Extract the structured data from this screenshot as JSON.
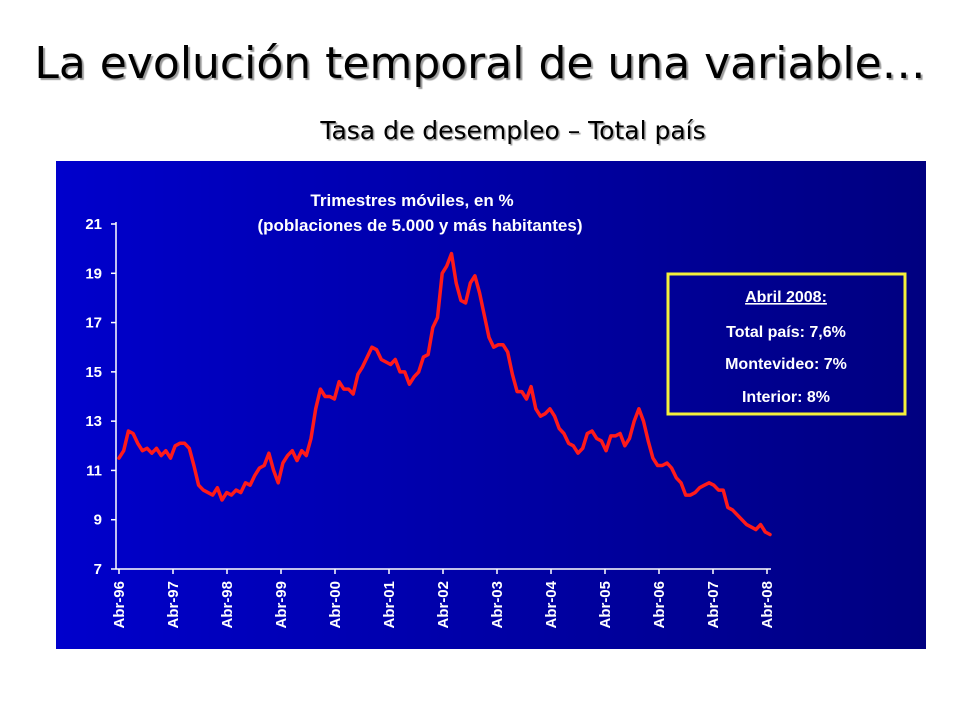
{
  "slide": {
    "title": "La evolución temporal de una variable…",
    "subtitle": "Tasa de desempleo – Total país"
  },
  "colors": {
    "line": "#ff1a1a",
    "panel_top": "#0000cc",
    "panel_bottom": "#000080",
    "note_border": "#f5f03a",
    "text": "#ffffff"
  },
  "annotation": {
    "heading": "Abril 2008:",
    "lines": [
      "Total país: 7,6%",
      "Montevideo: 7%",
      "Interior: 8%"
    ]
  },
  "chart_data": {
    "type": "line",
    "title": "Trimestres móviles, en %",
    "subtitle": "(poblaciones de 5.000 y más habitantes)",
    "xlabel": "",
    "ylabel": "",
    "ylim": [
      7,
      21
    ],
    "yticks": [
      7,
      9,
      11,
      13,
      15,
      17,
      19,
      21
    ],
    "x_ticks": [
      "Abr-96",
      "Abr-97",
      "Abr-98",
      "Abr-99",
      "Abr-00",
      "Abr-01",
      "Abr-02",
      "Abr-03",
      "Abr-04",
      "Abr-05",
      "Abr-06",
      "Abr-07",
      "Abr-08"
    ],
    "grid": false,
    "legend": "none",
    "series": [
      {
        "values": [
          11.5,
          11.8,
          12.6,
          12.5,
          12.1,
          11.8,
          11.9,
          11.7,
          11.9,
          11.6,
          11.8,
          11.5,
          12.0,
          12.1,
          12.1,
          11.9,
          11.2,
          10.4,
          10.2,
          10.1,
          10.0,
          10.3,
          9.8,
          10.1,
          10.0,
          10.2,
          10.1,
          10.5,
          10.4,
          10.8,
          11.1,
          11.2,
          11.7,
          11.0,
          10.5,
          11.3,
          11.6,
          11.8,
          11.4,
          11.8,
          11.6,
          12.3,
          13.5,
          14.3,
          14.0,
          14.0,
          13.9,
          14.6,
          14.3,
          14.3,
          14.1,
          14.9,
          15.2,
          15.6,
          16.0,
          15.9,
          15.5,
          15.4,
          15.3,
          15.5,
          15.0,
          15.0,
          14.5,
          14.8,
          15.0,
          15.6,
          15.7,
          16.8,
          17.2,
          19.0,
          19.3,
          19.8,
          18.6,
          17.9,
          17.8,
          18.6,
          18.9,
          18.2,
          17.3,
          16.4,
          16.0,
          16.1,
          16.1,
          15.8,
          14.9,
          14.2,
          14.2,
          13.9,
          14.4,
          13.5,
          13.2,
          13.3,
          13.5,
          13.2,
          12.7,
          12.5,
          12.1,
          12.0,
          11.7,
          11.9,
          12.5,
          12.6,
          12.3,
          12.2,
          11.8,
          12.4,
          12.4,
          12.5,
          12.0,
          12.3,
          13.0,
          13.5,
          13.0,
          12.2,
          11.5,
          11.2,
          11.2,
          11.3,
          11.1,
          10.7,
          10.5,
          10.0,
          10.0,
          10.1,
          10.3,
          10.4,
          10.5,
          10.4,
          10.2,
          10.2,
          9.5,
          9.4,
          9.2,
          9.0,
          8.8,
          8.7,
          8.6,
          8.8,
          8.5,
          8.4
        ]
      }
    ]
  }
}
